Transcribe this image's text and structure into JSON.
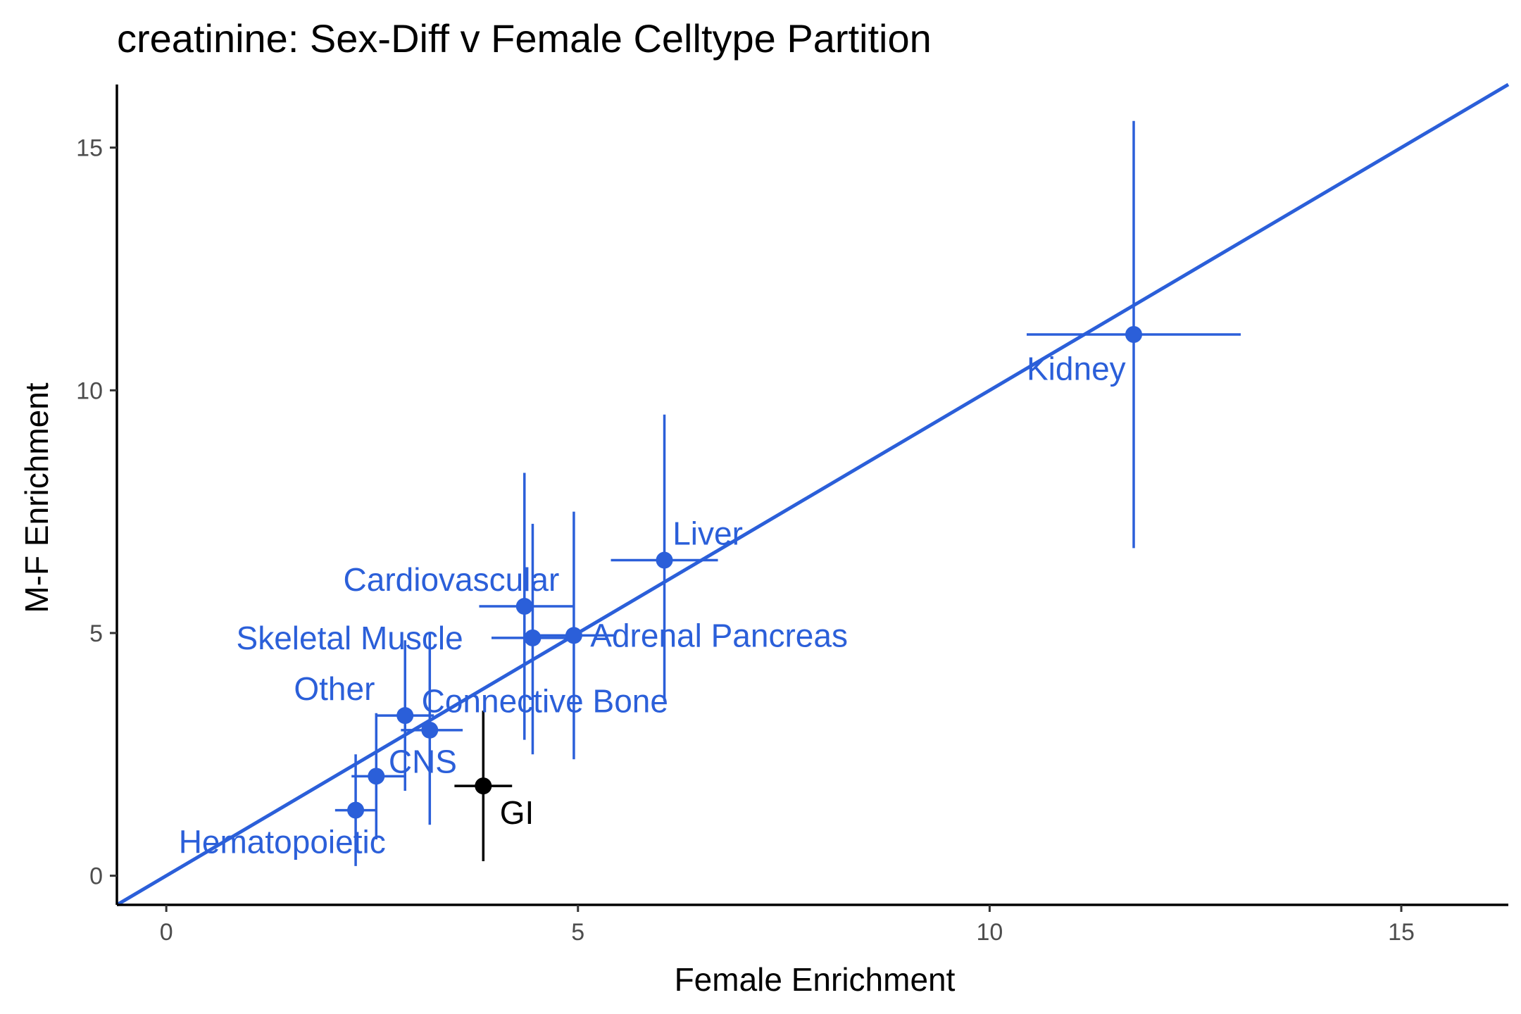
{
  "chart_data": {
    "type": "scatter",
    "title": "creatinine: Sex-Diff v Female Celltype Partition",
    "xlabel": "Female Enrichment",
    "ylabel": "M-F Enrichment",
    "xlim": [
      -0.6,
      16.3
    ],
    "ylim": [
      -0.6,
      16.3
    ],
    "xticks": [
      0,
      5,
      10,
      15
    ],
    "yticks": [
      0,
      5,
      10,
      15
    ],
    "xtick_labels": [
      "0",
      "5",
      "10",
      "15"
    ],
    "ytick_labels": [
      "0",
      "5",
      "10",
      "15"
    ],
    "grid": false,
    "legend": "none",
    "reference_line": {
      "slope": 1,
      "intercept": 0,
      "color": "#2b5fd9"
    },
    "colors": {
      "highlight": "#2b5fd9",
      "default": "#000000"
    },
    "points": [
      {
        "label": "Kidney",
        "x": 11.75,
        "y": 11.15,
        "xerr": [
          10.45,
          13.05
        ],
        "yerr": [
          6.75,
          15.55
        ],
        "color": "#2b5fd9",
        "label_dx": -1.3,
        "label_dy": -0.7,
        "anchor": "start"
      },
      {
        "label": "Liver",
        "x": 6.05,
        "y": 6.5,
        "xerr": [
          5.4,
          6.7
        ],
        "yerr": [
          3.6,
          9.5
        ],
        "color": "#2b5fd9",
        "label_dx": 0.1,
        "label_dy": 0.55,
        "anchor": "start"
      },
      {
        "label": "Cardiovascular",
        "x": 4.35,
        "y": 5.55,
        "xerr": [
          3.8,
          4.95
        ],
        "yerr": [
          2.8,
          8.3
        ],
        "color": "#2b5fd9",
        "label_dx": -2.2,
        "label_dy": 0.55,
        "anchor": "start"
      },
      {
        "label": "Skeletal Muscle",
        "x": 4.45,
        "y": 4.9,
        "xerr": [
          3.95,
          4.95
        ],
        "yerr": [
          2.5,
          7.25
        ],
        "color": "#2b5fd9",
        "label_dx": -3.6,
        "label_dy": 0.0,
        "anchor": "start"
      },
      {
        "label": "Adrenal Pancreas",
        "x": 4.95,
        "y": 4.95,
        "xerr": [
          4.4,
          5.45
        ],
        "yerr": [
          2.4,
          7.5
        ],
        "color": "#2b5fd9",
        "label_dx": 0.2,
        "label_dy": 0.0,
        "anchor": "start"
      },
      {
        "label": "Other",
        "x": 2.9,
        "y": 3.3,
        "xerr": [
          2.55,
          3.25
        ],
        "yerr": [
          1.75,
          4.85
        ],
        "color": "#2b5fd9",
        "label_dx": -1.35,
        "label_dy": 0.55,
        "anchor": "start"
      },
      {
        "label": "Connective Bone",
        "x": 3.2,
        "y": 3.0,
        "xerr": [
          2.85,
          3.6
        ],
        "yerr": [
          1.05,
          5.0
        ],
        "color": "#2b5fd9",
        "label_dx": -0.1,
        "label_dy": 0.6,
        "anchor": "start"
      },
      {
        "label": "CNS",
        "x": 2.55,
        "y": 2.05,
        "xerr": [
          2.25,
          2.9
        ],
        "yerr": [
          0.75,
          3.35
        ],
        "color": "#2b5fd9",
        "label_dx": 0.15,
        "label_dy": 0.3,
        "anchor": "start"
      },
      {
        "label": "GI",
        "x": 3.85,
        "y": 1.85,
        "xerr": [
          3.5,
          4.2
        ],
        "yerr": [
          0.3,
          3.4
        ],
        "color": "#000000",
        "label_dx": 0.2,
        "label_dy": -0.55,
        "anchor": "start"
      },
      {
        "label": "Hematopoietic",
        "x": 2.3,
        "y": 1.35,
        "xerr": [
          2.05,
          2.55
        ],
        "yerr": [
          0.2,
          2.5
        ],
        "color": "#2b5fd9",
        "label_dx": -2.15,
        "label_dy": -0.65,
        "anchor": "start"
      }
    ]
  }
}
